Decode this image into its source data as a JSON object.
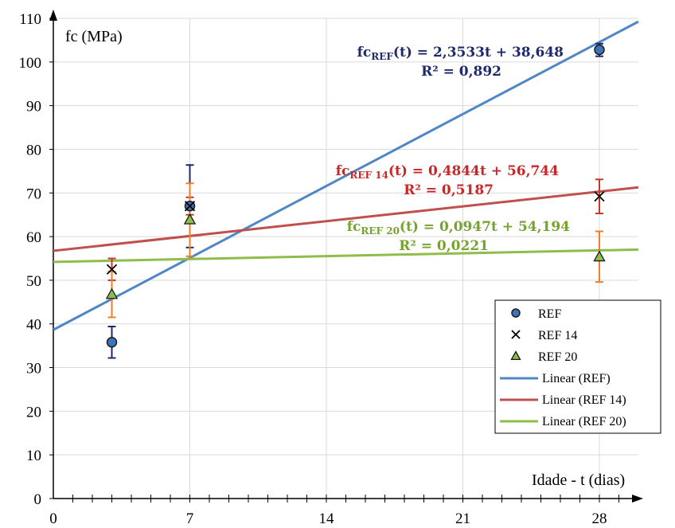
{
  "chart_data": {
    "type": "scatter",
    "xlabel": "Idade - t (dias)",
    "ylabel": "fc (MPa)",
    "xlim": [
      0,
      30
    ],
    "ylim": [
      0,
      110
    ],
    "xticks": [
      "0",
      "7",
      "14",
      "21",
      "28"
    ],
    "yticks": [
      "0",
      "10",
      "20",
      "30",
      "40",
      "50",
      "60",
      "70",
      "80",
      "90",
      "100",
      "110"
    ],
    "grid": true,
    "legend_position": "right",
    "series": [
      {
        "name": "REF",
        "marker": "circle",
        "color": "#3f73b8",
        "errcolor": "#1f2a6b",
        "points": [
          {
            "x": 3,
            "y": 35.8,
            "lo": 32.2,
            "hi": 39.4
          },
          {
            "x": 7,
            "y": 67.0,
            "lo": 57.5,
            "hi": 76.4
          },
          {
            "x": 28,
            "y": 102.8,
            "lo": 101.3,
            "hi": 104.2
          }
        ]
      },
      {
        "name": "REF 14",
        "marker": "x",
        "color": "#000000",
        "errcolor": "#c0392b",
        "points": [
          {
            "x": 3,
            "y": 52.5,
            "lo": 50.0,
            "hi": 55.0
          },
          {
            "x": 7,
            "y": 67.0,
            "lo": 65.0,
            "hi": 69.0
          },
          {
            "x": 28,
            "y": 69.2,
            "lo": 65.3,
            "hi": 73.1
          }
        ]
      },
      {
        "name": "REF 20",
        "marker": "triangle",
        "color": "#8fbc4a",
        "errcolor": "#f07f2a",
        "points": [
          {
            "x": 3,
            "y": 46.8,
            "lo": 41.5,
            "hi": 52.0
          },
          {
            "x": 7,
            "y": 63.9,
            "lo": 55.5,
            "hi": 72.2
          },
          {
            "x": 28,
            "y": 55.4,
            "lo": 49.6,
            "hi": 61.2
          }
        ]
      }
    ],
    "trendlines": [
      {
        "name": "Linear (REF)",
        "slope": 2.3533,
        "intercept": 38.648,
        "color": "#4f86c6",
        "equation_main": "fc",
        "equation_sub": "REF",
        "equation_rest": "(t) = 2,3533t + 38,648",
        "r2": "R² = 0,892",
        "label_color": "#1f2a6b"
      },
      {
        "name": "Linear (REF 14)",
        "slope": 0.4844,
        "intercept": 56.744,
        "color": "#c0504d",
        "equation_main": "fc",
        "equation_sub": "REF 14",
        "equation_rest": "(t) = 0,4844t + 56,744",
        "r2": "R² = 0,5187",
        "label_color": "#c62828"
      },
      {
        "name": "Linear (REF 20)",
        "slope": 0.0947,
        "intercept": 54.194,
        "color": "#8fbc4a",
        "equation_main": "fc",
        "equation_sub": "REF 20",
        "equation_rest": "(t) = 0,0947t + 54,194",
        "r2": "R² = 0,0221",
        "label_color": "#76a22e"
      }
    ]
  }
}
